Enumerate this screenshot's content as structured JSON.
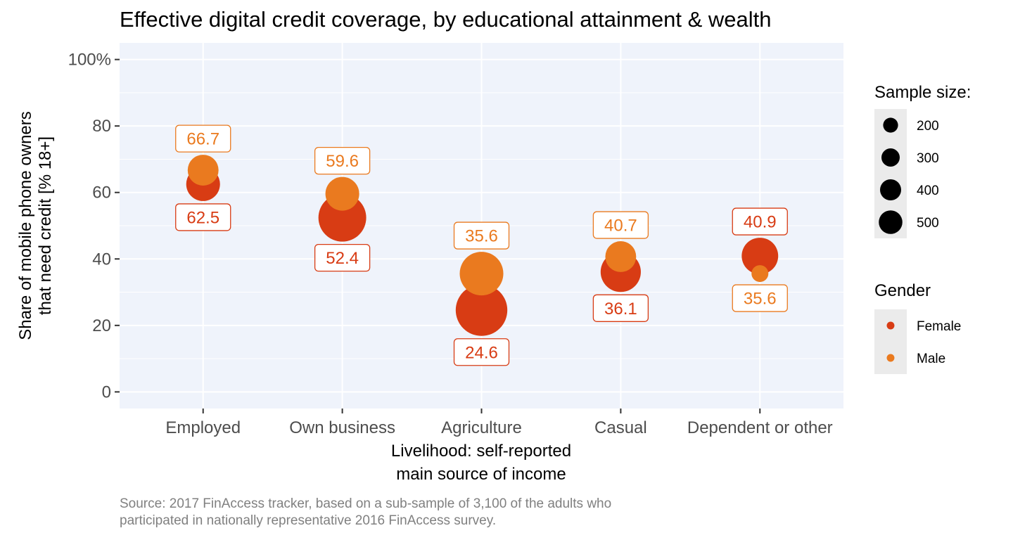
{
  "chart_data": {
    "type": "scatter",
    "title": "Effective digital credit coverage, by educational attainment & wealth",
    "xlabel": [
      "Livelihood: self-reported",
      "main source of income"
    ],
    "ylabel": [
      "Share of mobile phone owners",
      "that need credit [% 18+]"
    ],
    "caption": [
      "Source: 2017 FinAccess tracker, based on a sub-sample of 3,100 of the adults who",
      "participated in nationally representative 2016 FinAccess survey."
    ],
    "categories": [
      "Employed",
      "Own business",
      "Agriculture",
      "Casual",
      "Dependent or other"
    ],
    "ylim": [
      -5,
      105
    ],
    "yticks": [
      0,
      20,
      40,
      60,
      80,
      100
    ],
    "ytick_labels": [
      "0",
      "20",
      "40",
      "60",
      "80",
      "100%"
    ],
    "grid": true,
    "series": [
      {
        "name": "Female",
        "color": "#d83c14",
        "values": [
          62.5,
          52.4,
          24.6,
          36.1,
          40.9
        ],
        "labels": [
          "62.5",
          "52.4",
          "24.6",
          "36.1",
          "40.9"
        ],
        "sample_size": [
          240,
          480,
          560,
          340,
          280
        ],
        "label_position": [
          "below",
          "below",
          "below",
          "below",
          "above"
        ]
      },
      {
        "name": "Male",
        "color": "#ea7a1f",
        "values": [
          66.7,
          59.6,
          35.6,
          40.7,
          35.6
        ],
        "labels": [
          "66.7",
          "59.6",
          "35.6",
          "40.7",
          "35.6"
        ],
        "sample_size": [
          200,
          240,
          400,
          200,
          60
        ],
        "label_position": [
          "above",
          "above",
          "above",
          "above",
          "below"
        ]
      }
    ],
    "legend": {
      "position": "right",
      "size_title": "Sample size:",
      "size_entries": [
        {
          "label": "200",
          "value": 200
        },
        {
          "label": "300",
          "value": 300
        },
        {
          "label": "400",
          "value": 400
        },
        {
          "label": "500",
          "value": 500
        }
      ],
      "color_title": "Gender",
      "color_entries": [
        {
          "label": "Female",
          "color": "#d83c14"
        },
        {
          "label": "Male",
          "color": "#ea7a1f"
        }
      ]
    }
  }
}
